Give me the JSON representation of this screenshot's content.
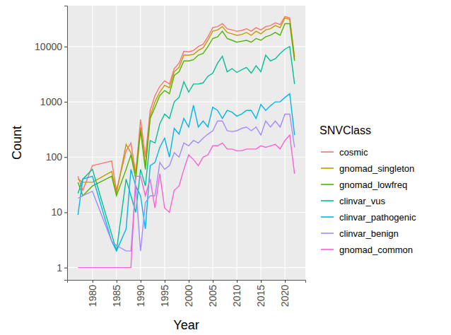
{
  "chart_data": {
    "type": "line",
    "x_label": "Year",
    "y_label": "Count",
    "legend_title": "SNVClass",
    "x": [
      1977,
      1978,
      1980,
      1984,
      1985,
      1987,
      1988,
      1989,
      1990,
      1991,
      1992,
      1993,
      1994,
      1995,
      1996,
      1997,
      1998,
      1999,
      2000,
      2001,
      2002,
      2003,
      2004,
      2005,
      2006,
      2007,
      2008,
      2009,
      2010,
      2011,
      2012,
      2013,
      2014,
      2015,
      2016,
      2017,
      2018,
      2019,
      2020,
      2021,
      2022
    ],
    "series": [
      {
        "name": "cosmic",
        "color": "#F8766D",
        "values": [
          45,
          25,
          70,
          85,
          25,
          130,
          180,
          50,
          480,
          100,
          700,
          1300,
          1900,
          2400,
          2100,
          4000,
          5000,
          8200,
          8000,
          8500,
          10000,
          11000,
          15000,
          22000,
          23000,
          26000,
          21000,
          20000,
          19000,
          19500,
          21000,
          19000,
          22000,
          20000,
          23000,
          24000,
          27000,
          25000,
          35000,
          33000,
          6000
        ]
      },
      {
        "name": "gnomad_singleton",
        "color": "#C49A00",
        "values": [
          40,
          35,
          35,
          55,
          22,
          170,
          120,
          50,
          350,
          70,
          550,
          1000,
          1500,
          2000,
          1800,
          3500,
          4200,
          7000,
          7000,
          7200,
          8500,
          9500,
          13000,
          19000,
          20000,
          23000,
          18000,
          17000,
          16000,
          16500,
          18000,
          16000,
          19000,
          17000,
          20000,
          21000,
          24000,
          22000,
          33000,
          31000,
          6500
        ]
      },
      {
        "name": "gnomad_lowfreq",
        "color": "#53B400",
        "values": [
          35,
          20,
          30,
          45,
          20,
          60,
          110,
          40,
          300,
          60,
          500,
          800,
          1300,
          1600,
          1400,
          3000,
          3500,
          5500,
          5500,
          5800,
          7000,
          7500,
          10000,
          14000,
          15000,
          19000,
          14000,
          13000,
          12000,
          12500,
          13000,
          12000,
          14000,
          13000,
          15000,
          16000,
          18000,
          16000,
          26000,
          26000,
          5500
        ]
      },
      {
        "name": "clinvar_vus",
        "color": "#00C094",
        "values": [
          22,
          40,
          60,
          4,
          2,
          40,
          20,
          10,
          60,
          30,
          200,
          180,
          400,
          600,
          500,
          1000,
          1200,
          2300,
          1500,
          2100,
          2100,
          2200,
          2900,
          3300,
          5000,
          6700,
          3500,
          4000,
          3400,
          3800,
          4200,
          3300,
          4500,
          3500,
          7000,
          5500,
          6000,
          7500,
          9000,
          10000,
          2100
        ]
      },
      {
        "name": "clinvar_pathogenic",
        "color": "#00B6EB",
        "values": [
          9,
          40,
          45,
          3,
          2,
          5,
          60,
          30,
          20,
          5,
          70,
          80,
          150,
          220,
          100,
          330,
          260,
          500,
          350,
          870,
          350,
          450,
          350,
          800,
          700,
          500,
          700,
          650,
          550,
          600,
          700,
          700,
          500,
          900,
          700,
          850,
          1000,
          1000,
          1200,
          1400,
          250
        ]
      },
      {
        "name": "clinvar_benign",
        "color": "#A58AFF",
        "values": [
          18,
          20,
          24,
          3,
          2.5,
          2,
          2,
          30,
          2,
          15,
          20,
          20,
          80,
          60,
          70,
          120,
          100,
          180,
          160,
          200,
          180,
          220,
          260,
          300,
          450,
          450,
          300,
          290,
          300,
          330,
          350,
          300,
          350,
          250,
          450,
          350,
          450,
          350,
          600,
          600,
          150
        ]
      },
      {
        "name": "gnomad_common",
        "color": "#FB61D7",
        "values": [
          1,
          1,
          1,
          1,
          1,
          1,
          1,
          45,
          45,
          20,
          40,
          12,
          50,
          12,
          10,
          25,
          30,
          60,
          110,
          90,
          70,
          100,
          110,
          160,
          160,
          180,
          140,
          140,
          130,
          130,
          140,
          140,
          140,
          160,
          150,
          160,
          170,
          140,
          200,
          250,
          50
        ]
      }
    ],
    "xlim": [
      1974.75,
      2024.25
    ],
    "xticks": [
      1980,
      1985,
      1990,
      1995,
      2000,
      2005,
      2010,
      2015,
      2020
    ],
    "ylim": [
      0.6,
      55000
    ],
    "yticks": [
      1,
      10,
      100,
      1000,
      10000
    ],
    "log": "y",
    "grid": true,
    "legend": "right"
  }
}
